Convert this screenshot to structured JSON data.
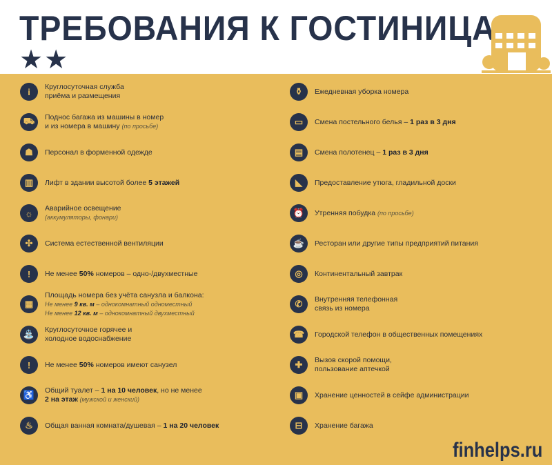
{
  "header": {
    "title": "ТРЕБОВАНИЯ К ГОСТИНИЦАМ:",
    "stars": "★★"
  },
  "colors": {
    "background": "#e9bd5c",
    "navy": "#27324a"
  },
  "left": [
    {
      "icon": "info-icon",
      "glyph": "i",
      "lines": [
        [
          {
            "t": "Круглосуточная служба"
          }
        ],
        [
          {
            "t": "приёма и размещения"
          }
        ]
      ]
    },
    {
      "icon": "porter-luggage-icon",
      "glyph": "⛟",
      "lines": [
        [
          {
            "t": "Поднос багажа из машины в номер"
          }
        ],
        [
          {
            "t": "и из номера в машину "
          },
          {
            "t": "(по просьбе)",
            "i": true
          }
        ]
      ]
    },
    {
      "icon": "uniformed-staff-icon",
      "glyph": "☗",
      "lines": [
        [
          {
            "t": "Персонал в форменной одежде"
          }
        ]
      ]
    },
    {
      "icon": "elevator-icon",
      "glyph": "▥",
      "lines": [
        [
          {
            "t": "Лифт в здании высотой более "
          },
          {
            "t": "5 этажей",
            "b": true
          }
        ]
      ]
    },
    {
      "icon": "emergency-light-icon",
      "glyph": "☼",
      "lines": [
        [
          {
            "t": "Аварийное освещение"
          }
        ],
        [
          {
            "t": "(аккумуляторы, фонари)",
            "i": true
          }
        ]
      ]
    },
    {
      "icon": "fan-icon",
      "glyph": "✣",
      "lines": [
        [
          {
            "t": "Система естественной вентиляции"
          }
        ]
      ]
    },
    {
      "icon": "exclamation-icon",
      "glyph": "!",
      "lines": [
        [
          {
            "t": "Не менее "
          },
          {
            "t": "50%",
            "b": true
          },
          {
            "t": " номеров – одно-/двухместные"
          }
        ]
      ]
    },
    {
      "icon": "room-area-icon",
      "glyph": "▦",
      "lines": [
        [
          {
            "t": "Площадь номера без учёта санузла и балкона:"
          }
        ],
        [
          {
            "t": "Не менее ",
            "i": true
          },
          {
            "t": "9 кв. м",
            "b": true,
            "i": true
          },
          {
            "t": " – однокомнатный одноместный",
            "i": true
          }
        ],
        [
          {
            "t": "Не менее ",
            "i": true
          },
          {
            "t": "12 кв. м",
            "b": true,
            "i": true
          },
          {
            "t": " – однокомнатный двухместный",
            "i": true
          }
        ]
      ]
    },
    {
      "icon": "water-tap-icon",
      "glyph": "⛲",
      "lines": [
        [
          {
            "t": "Круглосуточное горячее и"
          }
        ],
        [
          {
            "t": "холодное водоснабжение"
          }
        ]
      ]
    },
    {
      "icon": "exclamation-icon",
      "glyph": "!",
      "lines": [
        [
          {
            "t": "Не менее "
          },
          {
            "t": "50%",
            "b": true
          },
          {
            "t": " номеров имеют санузел"
          }
        ]
      ]
    },
    {
      "icon": "toilet-icon",
      "glyph": "♿",
      "lines": [
        [
          {
            "t": "Общий туалет – "
          },
          {
            "t": "1 на 10 человек",
            "b": true
          },
          {
            "t": ", но не менее"
          }
        ],
        [
          {
            "t": "2 на этаж",
            "b": true
          },
          {
            "t": " (мужской и женский)",
            "i": true
          }
        ]
      ]
    },
    {
      "icon": "bathtub-icon",
      "glyph": "♨",
      "lines": [
        [
          {
            "t": "Общая ванная комната/душевая – "
          },
          {
            "t": "1 на 20 человек",
            "b": true
          }
        ]
      ]
    }
  ],
  "right": [
    {
      "icon": "cleaning-icon",
      "glyph": "⚱",
      "lines": [
        [
          {
            "t": "Ежедневная уборка номера"
          }
        ]
      ]
    },
    {
      "icon": "bed-icon",
      "glyph": "▭",
      "lines": [
        [
          {
            "t": "Смена постельного белья – "
          },
          {
            "t": "1 раз в 3 дня",
            "b": true
          }
        ]
      ]
    },
    {
      "icon": "towel-icon",
      "glyph": "▤",
      "lines": [
        [
          {
            "t": "Смена полотенец – "
          },
          {
            "t": "1 раз в 3 дня",
            "b": true
          }
        ]
      ]
    },
    {
      "icon": "iron-icon",
      "glyph": "◣",
      "lines": [
        [
          {
            "t": "Предоставление утюга, гладильной доски"
          }
        ]
      ]
    },
    {
      "icon": "alarm-clock-icon",
      "glyph": "⏰",
      "lines": [
        [
          {
            "t": "Утренняя побудка "
          },
          {
            "t": "(по просьбе)",
            "i": true
          }
        ]
      ]
    },
    {
      "icon": "restaurant-icon",
      "glyph": "☕",
      "lines": [
        [
          {
            "t": "Ресторан или другие типы предприятий питания"
          }
        ]
      ]
    },
    {
      "icon": "breakfast-icon",
      "glyph": "◎",
      "lines": [
        [
          {
            "t": "Континентальный завтрак"
          }
        ]
      ]
    },
    {
      "icon": "phone-icon",
      "glyph": "✆",
      "lines": [
        [
          {
            "t": "Внутренняя телефонная"
          }
        ],
        [
          {
            "t": "связь из номера"
          }
        ]
      ]
    },
    {
      "icon": "landline-phone-icon",
      "glyph": "☎",
      "lines": [
        [
          {
            "t": "Городской телефон в общественных помещениях"
          }
        ]
      ]
    },
    {
      "icon": "ambulance-icon",
      "glyph": "✚",
      "lines": [
        [
          {
            "t": "Вызов скорой помощи,"
          }
        ],
        [
          {
            "t": "пользование аптечкой"
          }
        ]
      ]
    },
    {
      "icon": "safe-icon",
      "glyph": "▣",
      "lines": [
        [
          {
            "t": "Хранение ценностей в сейфе администрации"
          }
        ]
      ]
    },
    {
      "icon": "luggage-icon",
      "glyph": "⊟",
      "lines": [
        [
          {
            "t": "Хранение багажа"
          }
        ]
      ]
    }
  ],
  "footer": {
    "site": "finhelps.ru"
  }
}
